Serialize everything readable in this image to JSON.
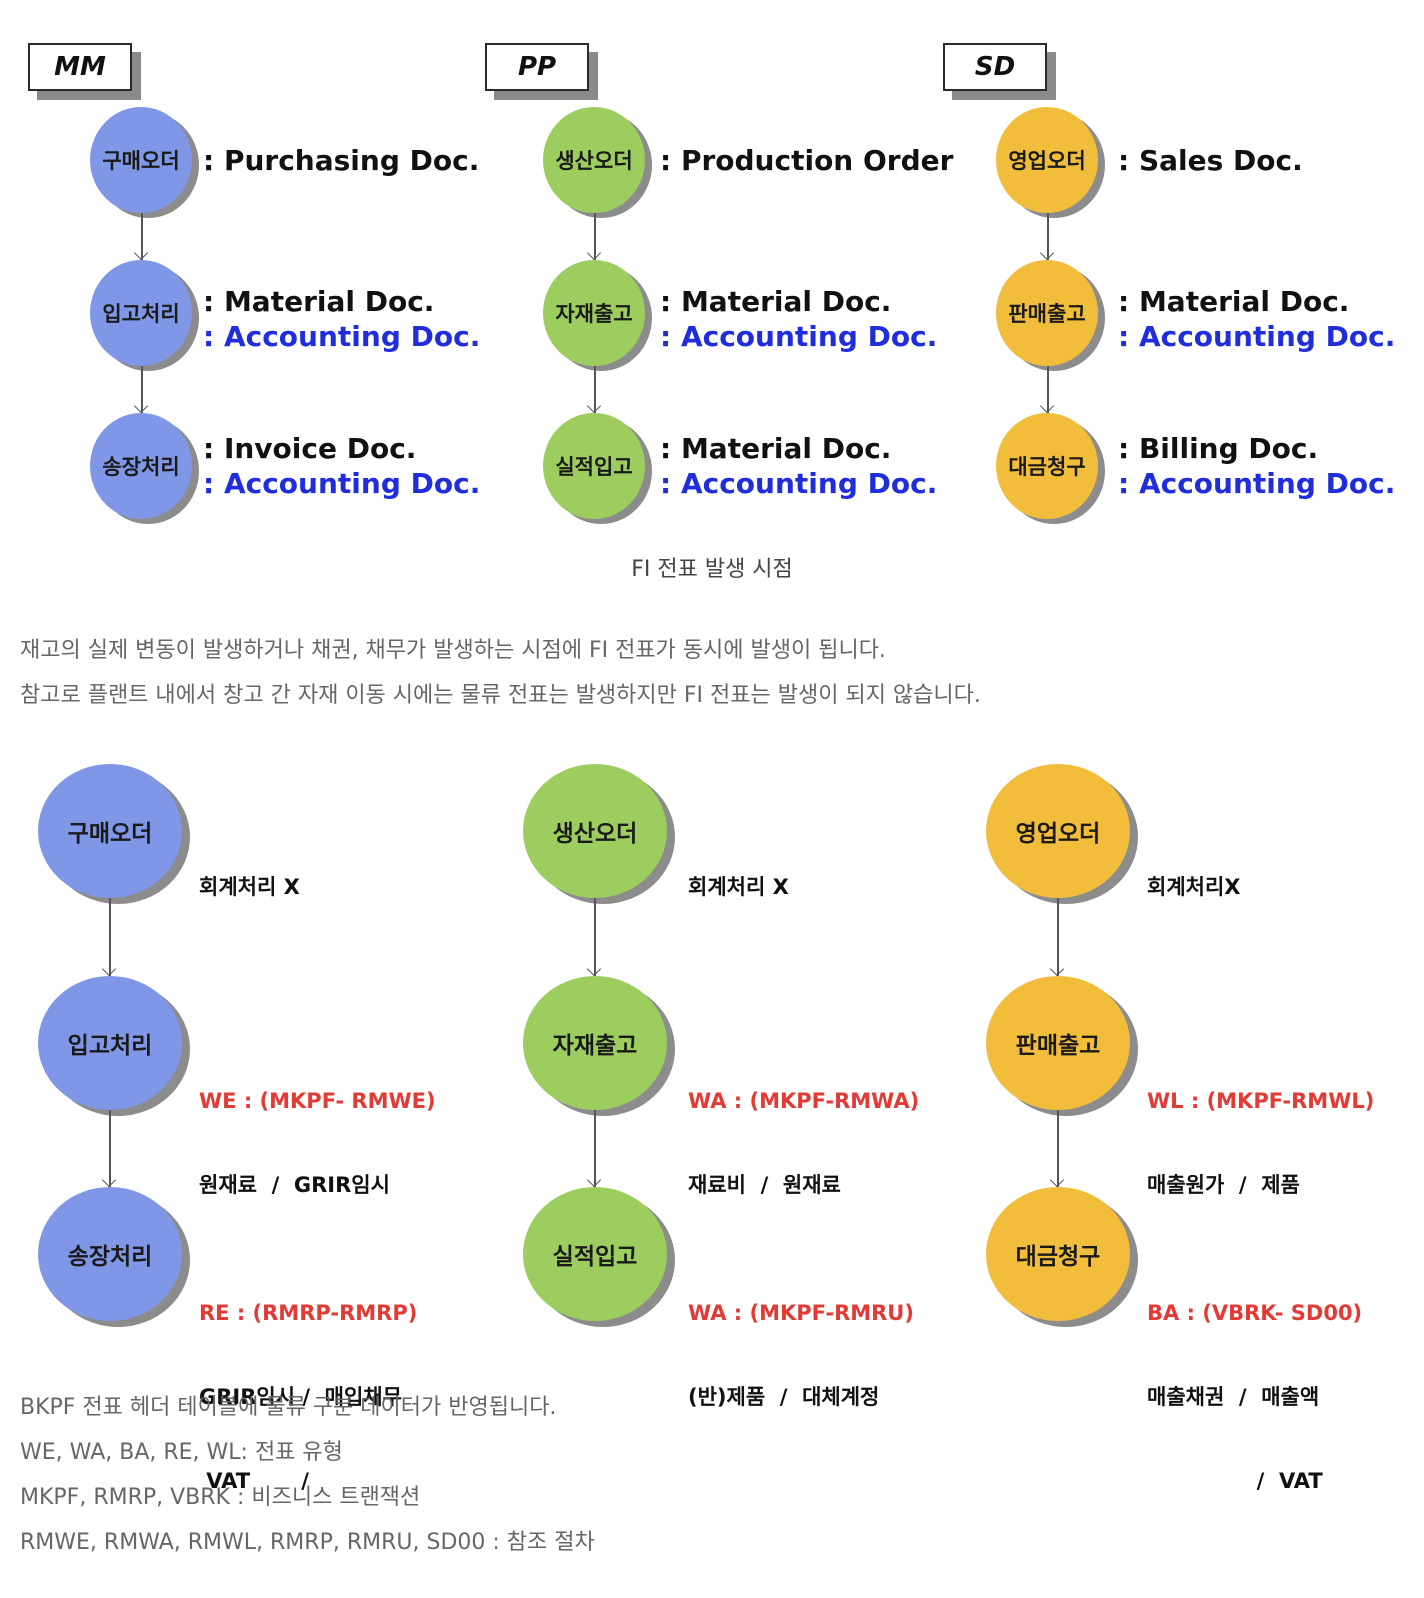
{
  "top_diagram": {
    "tabs": [
      "MM",
      "PP",
      "SD"
    ],
    "columns": [
      {
        "color": "blue",
        "steps": [
          {
            "label": "구매오더",
            "lines": [
              {
                "text": ": Purchasing Doc.",
                "kind": "normal"
              }
            ]
          },
          {
            "label": "입고처리",
            "lines": [
              {
                "text": ": Material Doc.",
                "kind": "normal"
              },
              {
                "text": ": Accounting Doc.",
                "kind": "accounting"
              }
            ]
          },
          {
            "label": "송장처리",
            "lines": [
              {
                "text": ": Invoice Doc.",
                "kind": "normal"
              },
              {
                "text": ": Accounting Doc.",
                "kind": "accounting"
              }
            ]
          }
        ]
      },
      {
        "color": "green",
        "steps": [
          {
            "label": "생산오더",
            "lines": [
              {
                "text": ": Production Order",
                "kind": "normal"
              }
            ]
          },
          {
            "label": "자재출고",
            "lines": [
              {
                "text": ": Material Doc.",
                "kind": "normal"
              },
              {
                "text": ": Accounting Doc.",
                "kind": "accounting"
              }
            ]
          },
          {
            "label": "실적입고",
            "lines": [
              {
                "text": ": Material Doc.",
                "kind": "normal"
              },
              {
                "text": ": Accounting Doc.",
                "kind": "accounting"
              }
            ]
          }
        ]
      },
      {
        "color": "yellow",
        "steps": [
          {
            "label": "영업오더",
            "lines": [
              {
                "text": ": Sales Doc.",
                "kind": "normal"
              }
            ]
          },
          {
            "label": "판매출고",
            "lines": [
              {
                "text": ": Material Doc.",
                "kind": "normal"
              },
              {
                "text": ": Accounting Doc.",
                "kind": "accounting"
              }
            ]
          },
          {
            "label": "대금청구",
            "lines": [
              {
                "text": ": Billing Doc.",
                "kind": "normal"
              },
              {
                "text": ": Accounting Doc.",
                "kind": "accounting"
              }
            ]
          }
        ]
      }
    ]
  },
  "caption": "FI 전표 발생 시점",
  "paragraph1": [
    "재고의 실제 변동이 발생하거나 채권, 채무가 발생하는 시점에 FI 전표가 동시에 발생이 됩니다.",
    "참고로 플랜트 내에서 창고 간 자재 이동 시에는 물류 전표는 발생하지만 FI 전표는 발생이 되지 않습니다."
  ],
  "bottom_diagram": {
    "columns": [
      {
        "color": "blue",
        "steps": [
          {
            "label": "구매오더",
            "red": "",
            "lines": [
              "회계처리 X"
            ]
          },
          {
            "label": "입고처리",
            "red": "WE : (MKPF- RMWE)",
            "lines": [
              "원재료  /  GRIR임시"
            ]
          },
          {
            "label": "송장처리",
            "red": "RE : (RMRP-RMRP)",
            "lines": [
              "GRIR임시 /  매입채무",
              " VAT       /"
            ]
          }
        ]
      },
      {
        "color": "green",
        "steps": [
          {
            "label": "생산오더",
            "red": "",
            "lines": [
              "회계처리 X"
            ]
          },
          {
            "label": "자재출고",
            "red": "WA : (MKPF-RMWA)",
            "lines": [
              "재료비  /  원재료"
            ]
          },
          {
            "label": "실적입고",
            "red": "WA : (MKPF-RMRU)",
            "lines": [
              "(반)제품  /  대체계정"
            ]
          }
        ]
      },
      {
        "color": "yellow",
        "steps": [
          {
            "label": "영업오더",
            "red": "",
            "lines": [
              "회계처리X"
            ]
          },
          {
            "label": "판매출고",
            "red": "WL : (MKPF-RMWL)",
            "lines": [
              "매출원가  /  제품"
            ]
          },
          {
            "label": "대금청구",
            "red": "BA : (VBRK- SD00)",
            "lines": [
              "매출채권  /  매출액",
              "               /  VAT"
            ]
          }
        ]
      }
    ]
  },
  "paragraph2": [
    "BKPF 전표 헤더 테이블에 물류 구분 데이터가 반영됩니다.",
    "WE, WA, BA, RE, WL: 전표 유형",
    "MKPF, RMRP, VBRK : 비즈니스 트랜잭션",
    "RMWE, RMWA, RMWL, RMRP, RMRU, SD00 : 참조 절차"
  ],
  "colors": {
    "blue": "#7f97e6",
    "green": "#9ccd5e",
    "yellow": "#f2bd3b",
    "accounting_text": "#1f2ddc",
    "red_text": "#e23b36"
  }
}
